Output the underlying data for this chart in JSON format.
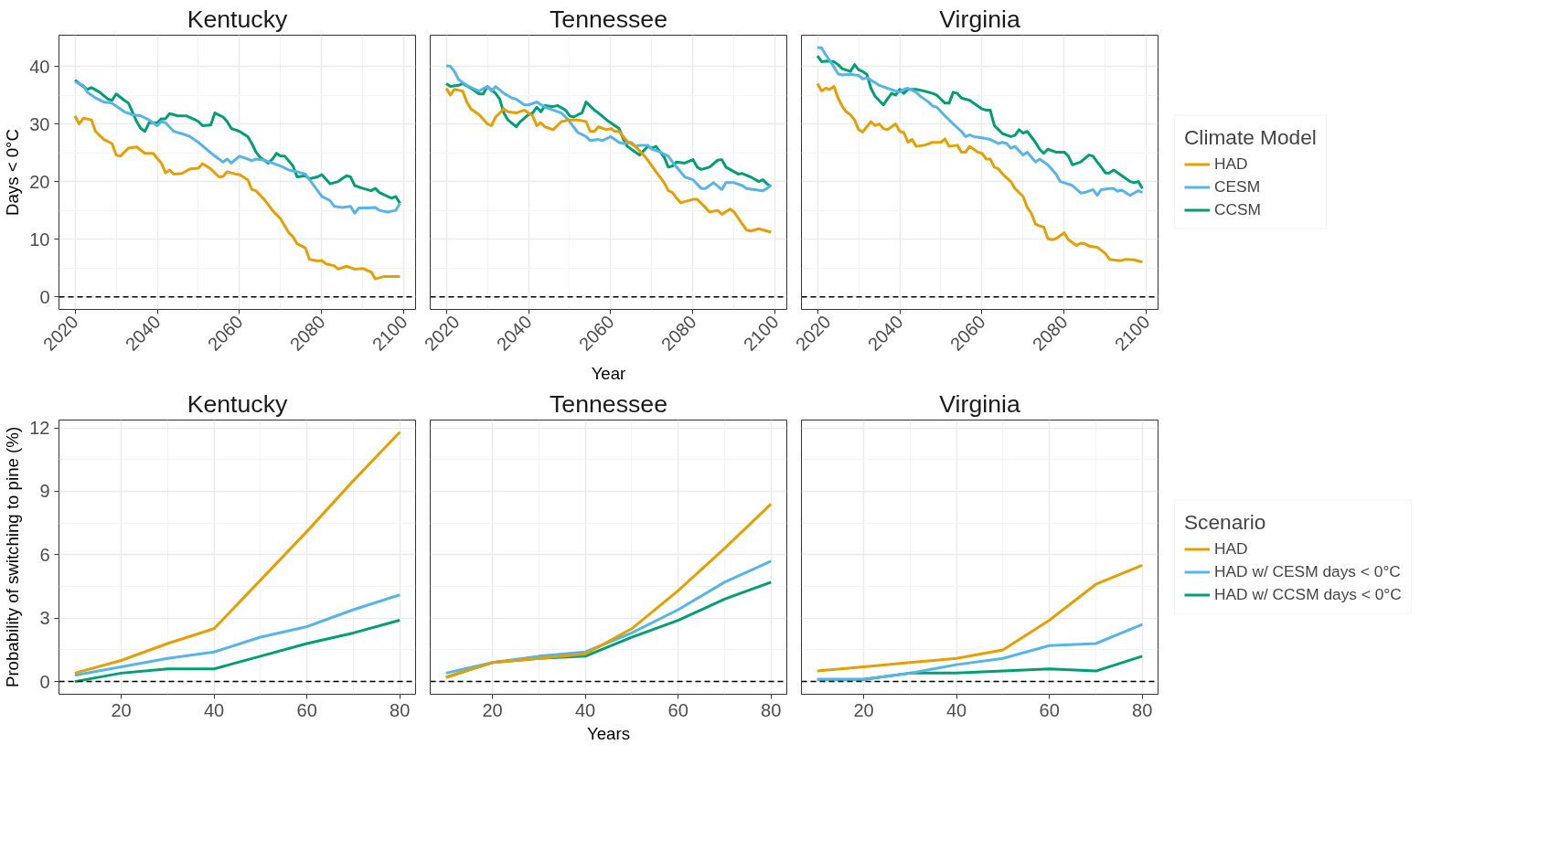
{
  "chart_data": [
    {
      "type": "line",
      "title": "Kentucky",
      "ylabel": "Days < 0°C",
      "xlim": [
        2016.1,
        2102.8
      ],
      "xticks": [
        2020,
        2040,
        2060,
        2080,
        2100
      ],
      "ylim": [
        -2.2,
        45.4
      ],
      "yticks": [
        0,
        10,
        20,
        30,
        40
      ],
      "grid": true,
      "legend": false,
      "ref_lines": [
        {
          "axis": "y",
          "value": 0,
          "color": "#000000",
          "line_style": "dashed"
        }
      ],
      "series": [
        {
          "color": "#e69f00",
          "x": [
            2020,
            2021,
            2022,
            2024,
            2025,
            2027,
            2029,
            2030,
            2031,
            2033,
            2035,
            2037,
            2039,
            2041,
            2042,
            2043,
            2044,
            2046,
            2048,
            2050,
            2051,
            2053,
            2055,
            2056,
            2057,
            2059,
            2060,
            2062,
            2063,
            2064,
            2066,
            2068,
            2070,
            2072,
            2073,
            2074,
            2076,
            2077,
            2079,
            2080,
            2081,
            2083,
            2084,
            2086,
            2088,
            2090,
            2092,
            2093,
            2095,
            2097,
            2099
          ],
          "values": [
            31.4,
            30,
            31,
            30.7,
            28.7,
            27.3,
            26.6,
            24.6,
            24.4,
            25.8,
            26,
            24.9,
            24.9,
            23.2,
            21.5,
            22,
            21.3,
            21.4,
            22.2,
            22.3,
            23.1,
            22.2,
            20.8,
            20.9,
            21.7,
            21.3,
            21.2,
            20.3,
            18.6,
            18.4,
            16.9,
            15,
            13.5,
            11.1,
            10.4,
            9.2,
            8.5,
            6.5,
            6.2,
            6.3,
            5.7,
            5.4,
            4.8,
            5.3,
            4.8,
            4.9,
            4.3,
            3.1,
            3.5,
            3.5,
            3.5
          ]
        },
        {
          "color": "#56b4e9",
          "x": [
            2020,
            2022,
            2023,
            2025,
            2027,
            2029,
            2030,
            2032,
            2034,
            2036,
            2038,
            2040,
            2041,
            2042,
            2044,
            2046,
            2048,
            2050,
            2052,
            2054,
            2056,
            2057,
            2058,
            2060,
            2062,
            2063,
            2064,
            2066,
            2068,
            2070,
            2072,
            2074,
            2076,
            2077,
            2079,
            2080,
            2082,
            2083,
            2085,
            2087,
            2088,
            2089,
            2091,
            2093,
            2094,
            2096,
            2098,
            2099
          ],
          "values": [
            37.3,
            36.7,
            35.5,
            34.5,
            33.8,
            33.6,
            33.1,
            32.1,
            31.6,
            31.4,
            30.7,
            29.7,
            30.4,
            30.2,
            28.7,
            28.3,
            27.8,
            26.8,
            25.6,
            24.4,
            23.4,
            23.9,
            23.2,
            24.4,
            23.9,
            23.6,
            23.9,
            23.7,
            23.2,
            22.7,
            22,
            21.7,
            21.3,
            20.3,
            18.4,
            17.4,
            16.7,
            15.7,
            15.5,
            15.7,
            14.5,
            15.4,
            15.4,
            15.5,
            15,
            14.7,
            15,
            16.2
          ]
        },
        {
          "color": "#009e73",
          "x": [
            2020,
            2021,
            2023,
            2024,
            2026,
            2028,
            2029,
            2030,
            2032,
            2033,
            2035,
            2036,
            2037,
            2038,
            2040,
            2041,
            2042,
            2043,
            2045,
            2047,
            2049,
            2050,
            2051,
            2053,
            2054,
            2056,
            2057,
            2058,
            2060,
            2062,
            2063,
            2064,
            2065,
            2066,
            2067,
            2068,
            2069,
            2070,
            2071,
            2073,
            2074,
            2076,
            2077,
            2079,
            2080,
            2082,
            2083,
            2084,
            2086,
            2087,
            2088,
            2090,
            2092,
            2093,
            2094,
            2096,
            2097,
            2098,
            2099
          ],
          "values": [
            37.6,
            37,
            36,
            36.3,
            35.5,
            34.3,
            34.1,
            35.2,
            34.1,
            33.6,
            30.4,
            29.2,
            28.7,
            30.2,
            30.2,
            30.9,
            30.9,
            31.8,
            31.4,
            31.4,
            30.8,
            30.4,
            29.7,
            29.8,
            31.9,
            31.2,
            30.4,
            29.2,
            28.7,
            27.8,
            26.6,
            25.1,
            24.2,
            23.7,
            23.2,
            23.9,
            24.9,
            24.4,
            24.4,
            22.7,
            20.8,
            21,
            20.5,
            20.8,
            21.2,
            19.6,
            19.8,
            20,
            21,
            20.8,
            19.3,
            18.8,
            18.4,
            18.8,
            18.1,
            17.4,
            17.1,
            17.4,
            16.2
          ]
        }
      ]
    },
    {
      "type": "line",
      "title": "Tennessee",
      "xlabel": "Year",
      "xlim": [
        2016.1,
        2102.8
      ],
      "xticks": [
        2020,
        2040,
        2060,
        2080,
        2100
      ],
      "ylim": [
        -2.2,
        45.4
      ],
      "yticks": [
        0,
        10,
        20,
        30,
        40
      ],
      "tick_labels": "x",
      "grid": true,
      "legend": false,
      "ref_lines": [
        {
          "axis": "y",
          "value": 0,
          "color": "#000000",
          "line_style": "dashed"
        }
      ],
      "series": [
        {
          "color": "#e69f00",
          "x": [
            2020,
            2021,
            2022,
            2024,
            2025,
            2026,
            2028,
            2030,
            2031,
            2032,
            2034,
            2035,
            2037,
            2039,
            2041,
            2042,
            2043,
            2044,
            2046,
            2048,
            2050,
            2052,
            2054,
            2055,
            2056,
            2057,
            2059,
            2060,
            2061,
            2062,
            2064,
            2066,
            2068,
            2069,
            2071,
            2073,
            2074,
            2075,
            2076,
            2077,
            2079,
            2080,
            2081,
            2083,
            2084,
            2086,
            2087,
            2089,
            2090,
            2092,
            2093,
            2094,
            2096,
            2098,
            2099
          ],
          "values": [
            36.2,
            35,
            36,
            35.7,
            33.8,
            32.6,
            31.6,
            30,
            29.7,
            31.2,
            32.6,
            32.1,
            31.9,
            32.4,
            31.4,
            29.7,
            30.2,
            29.5,
            29,
            30.4,
            30.7,
            30.7,
            30.4,
            28.7,
            28.7,
            29.5,
            29,
            29.2,
            28.7,
            28.7,
            27,
            26.1,
            24.6,
            23.7,
            21.7,
            19.8,
            18.4,
            18.1,
            17.1,
            16.3,
            16.7,
            16.9,
            16.9,
            15.5,
            14.7,
            15,
            14.3,
            15.2,
            14.7,
            12.6,
            11.6,
            11.4,
            11.8,
            11.4,
            11.2
          ]
        },
        {
          "color": "#56b4e9",
          "x": [
            2020,
            2021,
            2022,
            2023,
            2025,
            2027,
            2028,
            2030,
            2031,
            2032,
            2034,
            2036,
            2037,
            2039,
            2040,
            2042,
            2044,
            2046,
            2048,
            2050,
            2052,
            2054,
            2055,
            2057,
            2058,
            2060,
            2062,
            2063,
            2065,
            2066,
            2067,
            2069,
            2070,
            2071,
            2072,
            2074,
            2075,
            2076,
            2078,
            2080,
            2082,
            2083,
            2085,
            2087,
            2088,
            2090,
            2092,
            2093,
            2095,
            2097,
            2098,
            2099
          ],
          "values": [
            40.1,
            40,
            39.1,
            37.7,
            36.7,
            36,
            35.7,
            36.5,
            35.7,
            36.5,
            35.3,
            34.5,
            34.3,
            33.3,
            33.3,
            33.8,
            32.9,
            32.4,
            31.9,
            30.4,
            28.5,
            27.8,
            27.1,
            27.3,
            27.1,
            27.8,
            26.8,
            26.6,
            26.8,
            26.1,
            26.3,
            26.3,
            25.6,
            25.4,
            25.1,
            24.4,
            23.4,
            22.5,
            20.8,
            20.3,
            18.8,
            18.8,
            19.8,
            18.6,
            19.8,
            19.8,
            19.3,
            18.8,
            18.6,
            18.4,
            18.8,
            19.4
          ]
        },
        {
          "color": "#009e73",
          "x": [
            2020,
            2021,
            2023,
            2024,
            2026,
            2028,
            2029,
            2030,
            2032,
            2033,
            2034,
            2035,
            2037,
            2038,
            2040,
            2041,
            2042,
            2043,
            2044,
            2046,
            2047,
            2049,
            2050,
            2051,
            2052,
            2053,
            2054,
            2056,
            2057,
            2059,
            2061,
            2062,
            2063,
            2064,
            2066,
            2067,
            2069,
            2070,
            2071,
            2073,
            2074,
            2075,
            2076,
            2078,
            2080,
            2081,
            2082,
            2084,
            2086,
            2087,
            2088,
            2090,
            2091,
            2092,
            2094,
            2096,
            2097,
            2098,
            2099
          ],
          "values": [
            37,
            36.5,
            36.7,
            37,
            36.2,
            35.2,
            35.2,
            36.5,
            35.3,
            34.3,
            31.9,
            30.7,
            29.5,
            30.4,
            31.6,
            31.9,
            32.9,
            32.1,
            33.2,
            33,
            33.2,
            32.4,
            31.4,
            31.2,
            31.6,
            31.9,
            33.8,
            32.4,
            31.9,
            30.7,
            29.7,
            29.2,
            27.5,
            26.1,
            25.1,
            24.6,
            26.1,
            25.8,
            26.1,
            24.2,
            22.5,
            22.7,
            23.4,
            23.2,
            23.8,
            22.5,
            22.1,
            22.5,
            23.7,
            23.8,
            22.5,
            21.7,
            21.3,
            21.4,
            20.8,
            20,
            20.3,
            19.6,
            19.1
          ]
        }
      ]
    },
    {
      "type": "line",
      "title": "Virginia",
      "xlim": [
        2016.1,
        2102.8
      ],
      "xticks": [
        2020,
        2040,
        2060,
        2080,
        2100
      ],
      "ylim": [
        -2.2,
        45.4
      ],
      "yticks": [
        0,
        10,
        20,
        30,
        40
      ],
      "tick_labels": "x",
      "grid": true,
      "legend": "right",
      "legend_title": "Climate Model",
      "ref_lines": [
        {
          "axis": "y",
          "value": 0,
          "color": "#000000",
          "line_style": "dashed"
        }
      ],
      "series": [
        {
          "name": "HAD",
          "color": "#e69f00",
          "x": [
            2020,
            2021,
            2022,
            2023,
            2024,
            2025,
            2026,
            2027,
            2028,
            2029,
            2030,
            2031,
            2033,
            2034,
            2035,
            2036,
            2037,
            2039,
            2040,
            2041,
            2042,
            2043,
            2044,
            2046,
            2048,
            2050,
            2051,
            2052,
            2054,
            2055,
            2056,
            2057,
            2059,
            2060,
            2061,
            2062,
            2063,
            2064,
            2065,
            2067,
            2068,
            2070,
            2071,
            2072,
            2073,
            2074,
            2075,
            2076,
            2077,
            2078,
            2080,
            2081,
            2083,
            2084,
            2085,
            2086,
            2088,
            2090,
            2091,
            2093,
            2094,
            2095,
            2097,
            2099
          ],
          "values": [
            37,
            35.7,
            36.2,
            36,
            36.5,
            34.5,
            33.1,
            32.1,
            31.6,
            30.7,
            29,
            28.6,
            30.4,
            29.7,
            30,
            29.2,
            29,
            30,
            28.7,
            28.5,
            26.8,
            27.3,
            26.1,
            26.3,
            26.8,
            26.8,
            27.4,
            26.1,
            26.3,
            25.1,
            25.1,
            26.1,
            25.1,
            24.9,
            23.9,
            23.9,
            22.5,
            22.2,
            21.3,
            20,
            18.8,
            17.4,
            15.5,
            14.5,
            12.6,
            12.3,
            12.1,
            10.1,
            9.9,
            10.1,
            11.1,
            9.9,
            8.9,
            9.3,
            9.2,
            8.8,
            8.6,
            7.5,
            6.5,
            6.3,
            6.3,
            6.5,
            6.4,
            6
          ]
        },
        {
          "name": "CESM",
          "color": "#56b4e9",
          "x": [
            2020,
            2021,
            2022,
            2024,
            2025,
            2026,
            2028,
            2030,
            2031,
            2032,
            2033,
            2035,
            2037,
            2039,
            2040,
            2041,
            2042,
            2044,
            2045,
            2047,
            2048,
            2049,
            2051,
            2053,
            2055,
            2056,
            2057,
            2058,
            2060,
            2062,
            2064,
            2065,
            2066,
            2067,
            2068,
            2070,
            2071,
            2073,
            2074,
            2076,
            2078,
            2079,
            2080,
            2082,
            2084,
            2085,
            2087,
            2088,
            2089,
            2091,
            2092,
            2093,
            2094,
            2096,
            2097,
            2098,
            2099
          ],
          "values": [
            43.2,
            43.2,
            42,
            39.9,
            38.7,
            38.5,
            38.6,
            38.4,
            37.8,
            38,
            37.6,
            36.7,
            36.2,
            35.7,
            35.5,
            36,
            36.2,
            35.5,
            34.8,
            33.8,
            33.1,
            32.9,
            31.4,
            30,
            28.7,
            27.8,
            28.1,
            27.8,
            27.6,
            27.3,
            26.6,
            26.8,
            26.6,
            25.8,
            26.1,
            24.6,
            25.1,
            23.4,
            23.9,
            22.9,
            21.3,
            20,
            19.8,
            19.3,
            18,
            18.1,
            18.6,
            17.6,
            18.6,
            18.8,
            18.8,
            18.3,
            18.5,
            17.6,
            18,
            18.4,
            18.1
          ]
        },
        {
          "name": "CCSM",
          "color": "#009e73",
          "x": [
            2020,
            2021,
            2022,
            2024,
            2025,
            2026,
            2028,
            2029,
            2030,
            2031,
            2032,
            2033,
            2034,
            2036,
            2037,
            2038,
            2039,
            2040,
            2041,
            2042,
            2044,
            2046,
            2048,
            2049,
            2050,
            2051,
            2052,
            2053,
            2054,
            2055,
            2057,
            2059,
            2060,
            2061,
            2062,
            2063,
            2064,
            2065,
            2067,
            2068,
            2069,
            2070,
            2071,
            2073,
            2074,
            2075,
            2076,
            2078,
            2080,
            2081,
            2082,
            2084,
            2086,
            2087,
            2088,
            2089,
            2090,
            2091,
            2092,
            2094,
            2096,
            2097,
            2098,
            2099
          ],
          "values": [
            41.8,
            40.8,
            40.9,
            40.8,
            40.3,
            39.6,
            39.1,
            40.3,
            39.4,
            39.1,
            38.6,
            36.2,
            34.8,
            33.3,
            34.3,
            35.3,
            35,
            36,
            35.3,
            36,
            36,
            35.7,
            35.3,
            35,
            34.3,
            33.6,
            33.6,
            35.5,
            35.3,
            34.5,
            34.1,
            33.1,
            32.6,
            32.4,
            32.4,
            29.7,
            29,
            28.3,
            27.8,
            28,
            29,
            28.4,
            28.7,
            26.8,
            25.6,
            24.9,
            25.6,
            25.1,
            25.1,
            24.4,
            22.9,
            23.4,
            24.6,
            24.4,
            23.4,
            22.5,
            21.5,
            21.5,
            22,
            21,
            20,
            19.8,
            20,
            18.8
          ]
        }
      ]
    },
    {
      "type": "line",
      "title": "Kentucky",
      "ylabel": "Probability of switching to pine (%)",
      "xlim": [
        6.6,
        83.4
      ],
      "xticks": [
        20,
        40,
        60,
        80
      ],
      "ylim": [
        -0.6,
        12.37
      ],
      "yticks": [
        0,
        3,
        6,
        9,
        12
      ],
      "grid": true,
      "legend": false,
      "ref_lines": [
        {
          "axis": "y",
          "value": 0,
          "color": "#000000",
          "line_style": "dashed"
        }
      ],
      "x": [
        10,
        20,
        30,
        40,
        50,
        60,
        70,
        80
      ],
      "series": [
        {
          "color": "#e69f00",
          "values": [
            0.4,
            1.0,
            1.8,
            2.5,
            4.8,
            7.1,
            9.5,
            11.8
          ]
        },
        {
          "color": "#56b4e9",
          "values": [
            0.3,
            0.7,
            1.1,
            1.4,
            2.1,
            2.6,
            3.4,
            4.1
          ]
        },
        {
          "color": "#009e73",
          "values": [
            0.0,
            0.4,
            0.6,
            0.6,
            1.2,
            1.8,
            2.3,
            2.9
          ]
        }
      ]
    },
    {
      "type": "line",
      "title": "Tennessee",
      "xlabel": "Years",
      "xlim": [
        6.6,
        83.4
      ],
      "xticks": [
        20,
        40,
        60,
        80
      ],
      "ylim": [
        -0.6,
        12.37
      ],
      "yticks": [
        0,
        3,
        6,
        9,
        12
      ],
      "tick_labels": "x",
      "grid": true,
      "legend": false,
      "ref_lines": [
        {
          "axis": "y",
          "value": 0,
          "color": "#000000",
          "line_style": "dashed"
        }
      ],
      "x": [
        10,
        20,
        30,
        40,
        50,
        60,
        70,
        80
      ],
      "series": [
        {
          "color": "#e69f00",
          "values": [
            0.2,
            0.9,
            1.1,
            1.3,
            2.5,
            4.3,
            6.3,
            8.4
          ]
        },
        {
          "color": "#56b4e9",
          "values": [
            0.4,
            0.9,
            1.2,
            1.4,
            2.3,
            3.4,
            4.7,
            5.7
          ]
        },
        {
          "color": "#009e73",
          "values": [
            0.2,
            0.9,
            1.1,
            1.2,
            2.1,
            2.9,
            3.9,
            4.7
          ]
        }
      ]
    },
    {
      "type": "line",
      "title": "Virginia",
      "xlim": [
        6.6,
        83.4
      ],
      "xticks": [
        20,
        40,
        60,
        80
      ],
      "ylim": [
        -0.6,
        12.37
      ],
      "yticks": [
        0,
        3,
        6,
        9,
        12
      ],
      "tick_labels": "x",
      "grid": true,
      "legend": "right",
      "legend_title": "Scenario",
      "ref_lines": [
        {
          "axis": "y",
          "value": 0,
          "color": "#000000",
          "line_style": "dashed"
        }
      ],
      "x": [
        10,
        20,
        30,
        40,
        50,
        60,
        70,
        80
      ],
      "series": [
        {
          "name": "HAD",
          "color": "#e69f00",
          "values": [
            0.5,
            0.7,
            0.9,
            1.1,
            1.5,
            2.9,
            4.6,
            5.5
          ]
        },
        {
          "name": "HAD w/ CESM days < 0°C",
          "color": "#56b4e9",
          "values": [
            0.1,
            0.1,
            0.4,
            0.8,
            1.1,
            1.7,
            1.8,
            2.7
          ]
        },
        {
          "name": "HAD w/ CCSM days < 0°C",
          "color": "#009e73",
          "values": [
            0.1,
            0.1,
            0.4,
            0.4,
            0.5,
            0.6,
            0.5,
            1.2
          ]
        }
      ]
    }
  ]
}
